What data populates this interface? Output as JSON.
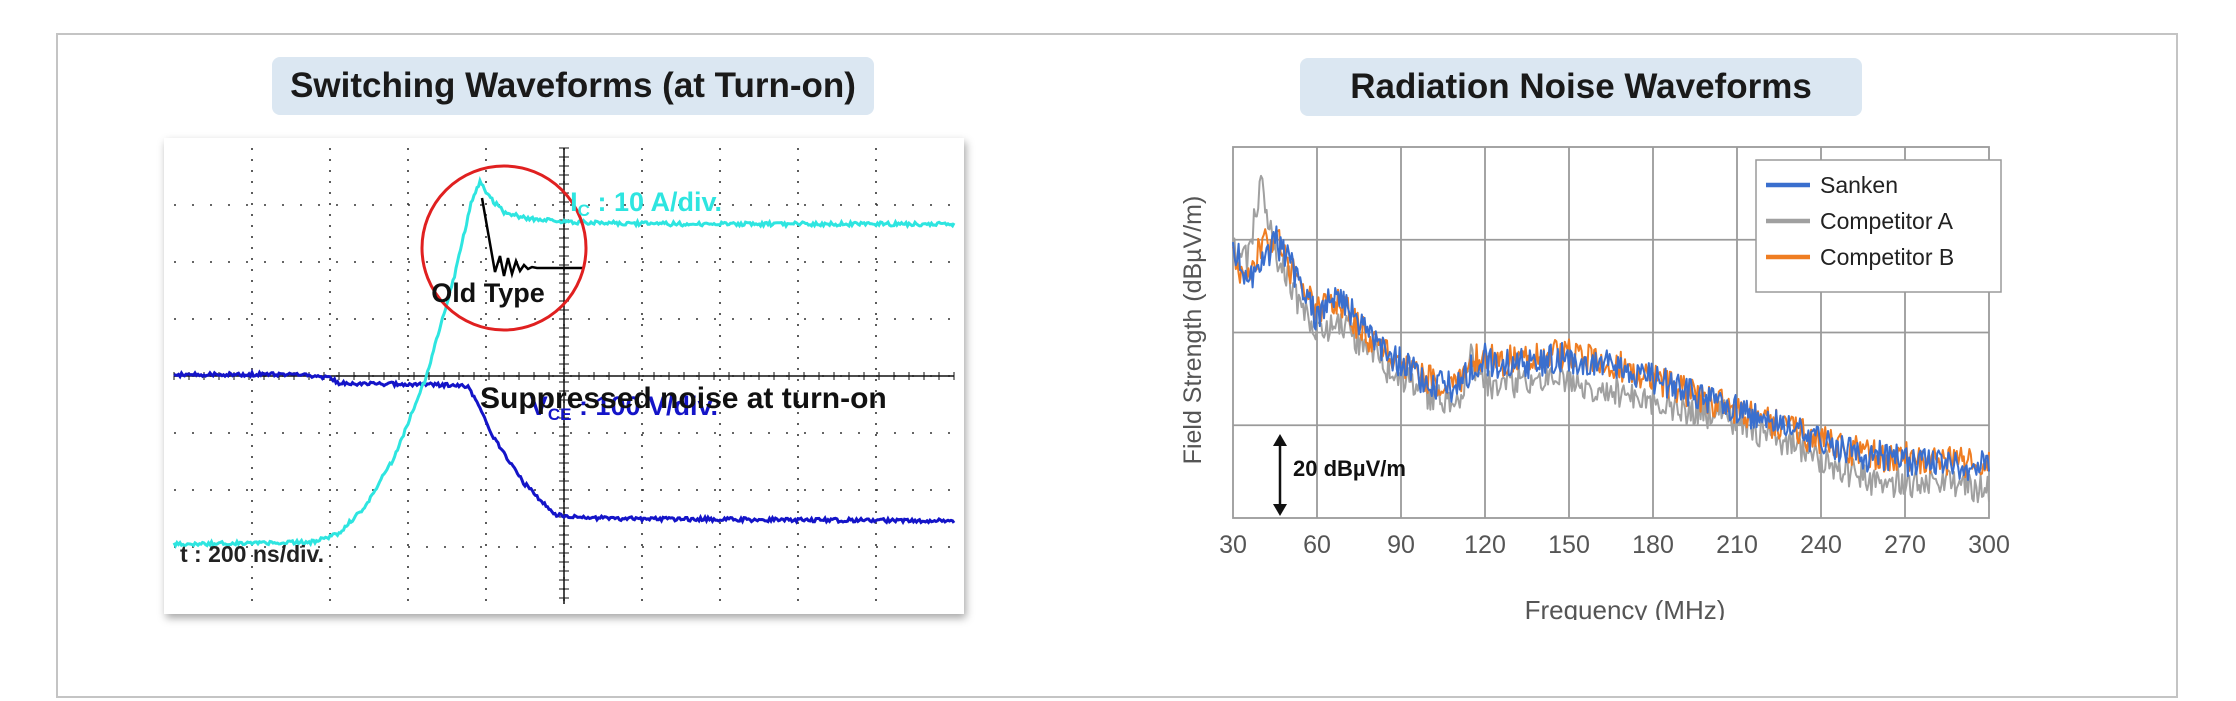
{
  "left_panel": {
    "title": "Switching Waveforms (at Turn-on)",
    "ic_label": {
      "main": "I",
      "sub": "C",
      "rest": " : 10 A/div."
    },
    "vce_label": {
      "main": "V",
      "sub": "CE",
      "rest": " : 100 V/div."
    },
    "time_label": "t : 200 ns/div.",
    "old_type_label": "Old Type",
    "annotation": "Suppressed noise at turn-on",
    "colors": {
      "ic": "#2ee5e0",
      "vce": "#1414c8",
      "circle": "#e02020",
      "grid": "#333333"
    }
  },
  "right_panel": {
    "title": "Radiation Noise Waveforms",
    "scale_label": "20 dBµV/m",
    "colors": {
      "grid": "#9a9a9a"
    }
  },
  "chart_data": {
    "type": "line",
    "xlabel": "Frequency (MHz)",
    "ylabel": "Field Strength (dBµV/m)",
    "xlim": [
      30,
      300
    ],
    "x_ticks": [
      "30",
      "60",
      "90",
      "120",
      "150",
      "180",
      "210",
      "240",
      "270",
      "300"
    ],
    "grid": true,
    "legend_position": "top-right",
    "x": [
      30,
      35,
      40,
      45,
      50,
      55,
      60,
      65,
      70,
      75,
      80,
      85,
      90,
      95,
      100,
      105,
      110,
      115,
      120,
      125,
      130,
      135,
      140,
      145,
      150,
      155,
      160,
      165,
      170,
      175,
      180,
      185,
      190,
      195,
      200,
      205,
      210,
      215,
      220,
      225,
      230,
      235,
      240,
      245,
      250,
      255,
      260,
      265,
      270,
      275,
      280,
      285,
      290,
      295,
      300
    ],
    "series": [
      {
        "name": "Competitor A",
        "color": "#a0a0a0",
        "values": [
          72,
          70,
          85,
          72,
          66,
          60,
          56,
          57,
          58,
          54,
          52,
          49,
          47,
          46,
          44,
          43,
          42,
          51,
          46,
          45,
          46,
          47,
          46,
          47,
          47,
          46,
          45,
          45,
          44,
          43,
          42,
          42,
          41,
          41,
          40,
          40,
          39,
          38,
          36,
          35,
          34,
          33,
          31,
          30,
          29,
          28,
          27,
          27,
          27,
          27,
          27,
          27,
          27,
          26,
          26
        ]
      },
      {
        "name": "Competitor B",
        "color": "#ef7d22",
        "values": [
          70,
          66,
          73,
          75,
          69,
          64,
          60,
          63,
          61,
          57,
          54,
          52,
          50,
          49,
          47,
          46,
          45,
          50,
          52,
          50,
          51,
          51,
          51,
          52,
          52,
          51,
          51,
          50,
          49,
          48,
          47,
          46,
          45,
          44,
          43,
          42,
          41,
          40,
          39,
          38,
          37,
          36,
          35,
          34,
          33,
          33,
          32,
          32,
          32,
          31,
          31,
          31,
          31,
          30,
          30
        ]
      },
      {
        "name": "Sanken",
        "color": "#3a6fce",
        "values": [
          73,
          67,
          68,
          74,
          70,
          63,
          59,
          64,
          62,
          58,
          55,
          52,
          50,
          48,
          46,
          46,
          45,
          49,
          51,
          49,
          51,
          50,
          50,
          51,
          51,
          50,
          50,
          50,
          49,
          48,
          47,
          46,
          45,
          44,
          43,
          42,
          41,
          40,
          39,
          38,
          37,
          36,
          35,
          34,
          33,
          32,
          32,
          32,
          31,
          31,
          31,
          30,
          30,
          30,
          30
        ]
      }
    ]
  }
}
